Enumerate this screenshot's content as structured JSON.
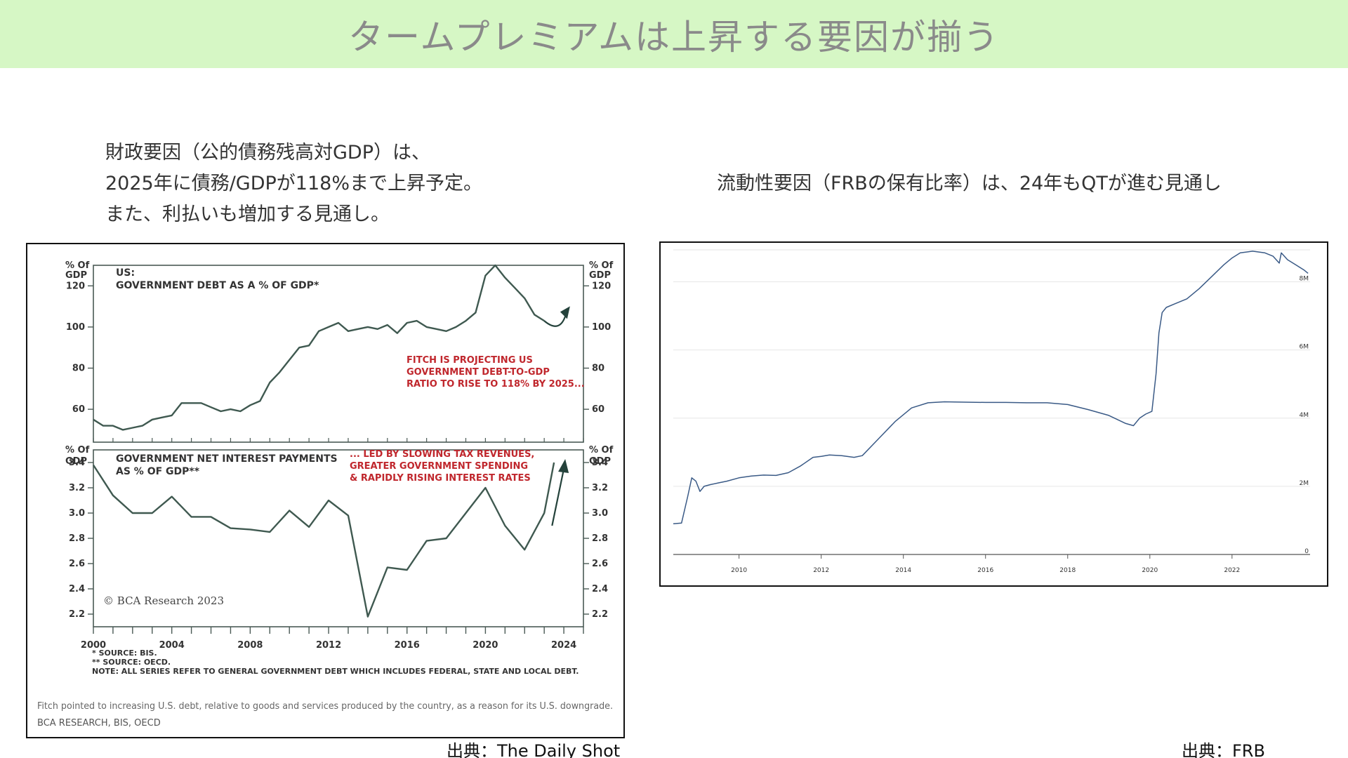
{
  "header": {
    "title": "タームプレミアムは上昇する要因が揃う"
  },
  "left_caption": {
    "line1": "財政要因（公的債務残高対GDP）は、",
    "line2": "2025年に債務/GDPが118%まで上昇予定。",
    "line3": "また、利払いも増加する見通し。"
  },
  "right_caption": {
    "line1": "流動性要因（FRBの保有比率）は、24年もQTが進む見通し"
  },
  "left_source": "出典：The Daily Shot",
  "right_source": "出典：FRB",
  "chart_data": [
    {
      "type": "line",
      "panel": "top",
      "title_line1": "US:",
      "title_line2": "GOVERNMENT DEBT AS A % OF GDP*",
      "axis_label_left_line1": "% Of",
      "axis_label_left_line2": "GDP",
      "axis_label_right_line1": "% Of",
      "axis_label_right_line2": "GDP",
      "ylim": [
        44,
        130
      ],
      "yticks": [
        60,
        80,
        100,
        120
      ],
      "xlim": [
        2000,
        2025
      ],
      "series": [
        {
          "name": "",
          "x": [
            2000,
            2000.5,
            2001,
            2001.5,
            2002,
            2002.5,
            2003,
            2003.5,
            2004,
            2004.5,
            2005,
            2005.5,
            2006,
            2006.5,
            2007,
            2007.5,
            2008,
            2008.5,
            2009,
            2009.5,
            2010,
            2010.5,
            2011,
            2011.5,
            2012,
            2012.5,
            2013,
            2013.5,
            2014,
            2014.5,
            2015,
            2015.5,
            2016,
            2016.5,
            2017,
            2017.5,
            2018,
            2018.5,
            2019,
            2019.5,
            2020,
            2020.5,
            2021,
            2021.5,
            2022,
            2022.5,
            2023
          ],
          "values": [
            55,
            52,
            52,
            50,
            51,
            52,
            55,
            56,
            57,
            63,
            63,
            63,
            61,
            59,
            60,
            59,
            62,
            64,
            73,
            78,
            84,
            90,
            91,
            98,
            100,
            102,
            98,
            99,
            100,
            99,
            101,
            97,
            102,
            103,
            100,
            99,
            98,
            100,
            103,
            107,
            125,
            130,
            124,
            119,
            114,
            106,
            103
          ]
        },
        {
          "name": "",
          "x": [
            2023,
            2023.8,
            2024.1
          ],
          "values": [
            103,
            100,
            106
          ]
        }
      ],
      "annotation_line1": "FITCH IS PROJECTING US",
      "annotation_line2": "GOVERNMENT DEBT-TO-GDP",
      "annotation_line3": "RATIO TO RISE TO 118% BY 2025..."
    },
    {
      "type": "line",
      "panel": "bottom",
      "title_line1": "GOVERNMENT NET INTEREST PAYMENTS",
      "title_line2": "AS % OF GDP**",
      "axis_label_left_line1": "% Of",
      "axis_label_left_line2": "GDP",
      "axis_label_right_line1": "% Of",
      "axis_label_right_line2": "GDP",
      "ylim": [
        2.1,
        3.5
      ],
      "yticks": [
        2.2,
        2.4,
        2.6,
        2.8,
        3.0,
        3.2,
        3.4
      ],
      "xlim": [
        2000,
        2025
      ],
      "xticks": [
        2000,
        2004,
        2008,
        2012,
        2016,
        2020,
        2024
      ],
      "series": [
        {
          "name": "",
          "x": [
            2000,
            2001,
            2002,
            2003,
            2004,
            2005,
            2006,
            2007,
            2008,
            2009,
            2010,
            2011,
            2012,
            2013,
            2014,
            2015,
            2016,
            2017,
            2018,
            2019,
            2020,
            2021,
            2022,
            2023,
            2023.5
          ],
          "values": [
            3.38,
            3.14,
            3.0,
            3.0,
            3.13,
            2.97,
            2.97,
            2.88,
            2.87,
            2.85,
            3.02,
            2.89,
            3.1,
            2.98,
            2.18,
            2.57,
            2.55,
            2.78,
            2.8,
            3.0,
            3.2,
            2.9,
            2.71,
            3.0,
            3.4
          ]
        }
      ],
      "annotation_line1": "... LED BY SLOWING TAX REVENUES,",
      "annotation_line2": "GREATER GOVERNMENT SPENDING",
      "annotation_line3": "& RAPIDLY RISING INTEREST RATES",
      "credit": "© BCA Research 2023"
    },
    {
      "type": "line",
      "panel": "fed",
      "ylim": [
        0,
        9000000
      ],
      "yticks": [
        0,
        2000000,
        4000000,
        6000000,
        8000000
      ],
      "ytick_labels": [
        "0",
        "2M",
        "4M",
        "6M",
        "8M"
      ],
      "xlim": [
        2008.4,
        2023.9
      ],
      "xticks": [
        2010,
        2012,
        2014,
        2016,
        2018,
        2020,
        2022
      ],
      "series": [
        {
          "name": "",
          "x": [
            2008.4,
            2008.6,
            2008.75,
            2008.85,
            2008.95,
            2009.05,
            2009.15,
            2009.3,
            2009.5,
            2009.7,
            2010,
            2010.3,
            2010.6,
            2010.9,
            2011.2,
            2011.5,
            2011.8,
            2012,
            2012.2,
            2012.5,
            2012.8,
            2013,
            2013.4,
            2013.8,
            2014.2,
            2014.6,
            2015,
            2015.5,
            2016,
            2016.5,
            2017,
            2017.5,
            2018,
            2018.5,
            2019,
            2019.4,
            2019.6,
            2019.75,
            2019.9,
            2020.05,
            2020.15,
            2020.22,
            2020.3,
            2020.4,
            2020.6,
            2020.9,
            2021.2,
            2021.5,
            2021.8,
            2022,
            2022.2,
            2022.5,
            2022.8,
            2023,
            2023.15,
            2023.2,
            2023.35,
            2023.55,
            2023.75,
            2023.85
          ],
          "values": [
            900000,
            920000,
            1700000,
            2250000,
            2150000,
            1850000,
            2000000,
            2050000,
            2100000,
            2150000,
            2250000,
            2300000,
            2330000,
            2320000,
            2400000,
            2600000,
            2850000,
            2880000,
            2920000,
            2900000,
            2850000,
            2900000,
            3400000,
            3900000,
            4300000,
            4450000,
            4480000,
            4470000,
            4460000,
            4460000,
            4450000,
            4450000,
            4400000,
            4250000,
            4080000,
            3850000,
            3780000,
            4000000,
            4120000,
            4200000,
            5300000,
            6500000,
            7100000,
            7250000,
            7350000,
            7500000,
            7800000,
            8150000,
            8500000,
            8700000,
            8850000,
            8900000,
            8850000,
            8750000,
            8550000,
            8850000,
            8650000,
            8500000,
            8350000,
            8250000
          ]
        }
      ]
    }
  ],
  "left_notes": {
    "note1": "*  SOURCE: BIS.",
    "note2": "** SOURCE: OECD.",
    "note3": "NOTE: ALL SERIES REFER TO GENERAL GOVERNMENT DEBT WHICH INCLUDES FEDERAL, STATE AND LOCAL DEBT.",
    "footer1": "Fitch pointed to increasing U.S. debt, relative to goods and services produced by the country, as a reason for its U.S. downgrade.",
    "footer2": "BCA RESEARCH, BIS, OECD"
  },
  "colors": {
    "header_bg": "#d6f7c5",
    "title_text": "#8a8a8a",
    "line_dark": "#3f5950",
    "annotation_red": "#c0272d",
    "fed_line": "#3a5a86"
  }
}
